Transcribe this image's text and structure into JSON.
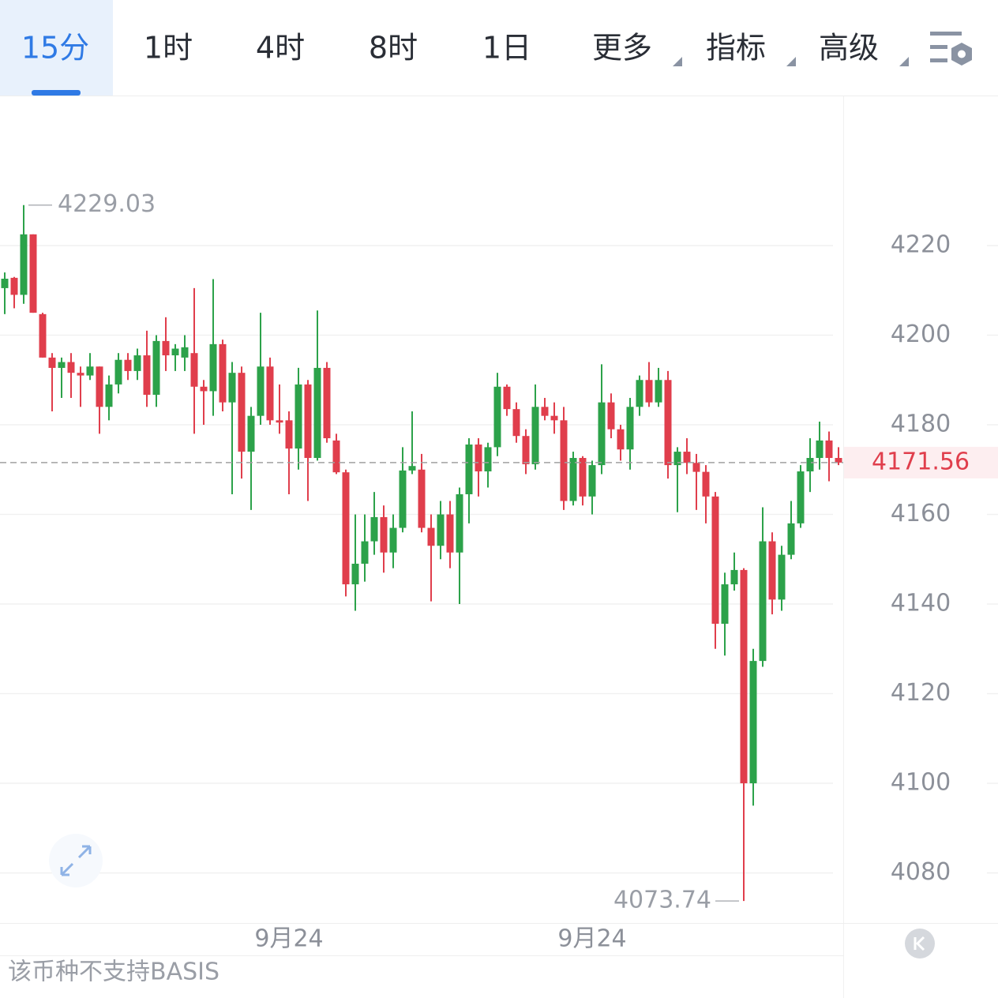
{
  "toolbar": {
    "tabs": [
      "15分",
      "1时",
      "4时",
      "8时",
      "1日",
      "更多",
      "指标",
      "高级"
    ]
  },
  "footer": "该币种不支持BASIS",
  "chart_data": {
    "type": "candlestick",
    "categories": [
      null,
      null,
      null,
      null,
      null,
      null,
      null,
      null,
      null,
      null,
      null,
      null,
      null,
      null,
      null,
      null,
      null,
      null,
      null,
      null,
      null,
      null,
      null,
      null,
      null,
      null,
      null,
      null,
      null,
      null,
      "9月24",
      null,
      null,
      null,
      null,
      null,
      null,
      null,
      null,
      null,
      null,
      null,
      null,
      null,
      null,
      null,
      null,
      null,
      null,
      null,
      null,
      null,
      null,
      null,
      null,
      null,
      null,
      null,
      null,
      null,
      null,
      null,
      "9月24",
      null,
      null,
      null,
      null,
      null,
      null,
      null,
      null,
      null,
      null,
      null,
      null,
      null,
      null,
      null,
      null,
      null,
      null,
      null,
      null,
      null,
      null,
      null,
      null,
      null,
      null
    ],
    "open": [
      4210.5,
      4212.8,
      4209,
      4222.5,
      4204.7,
      4195,
      4192.7,
      4194,
      4191.6,
      4191,
      4193,
      4184,
      4189,
      4194.5,
      4192,
      4195.5,
      4186.7,
      4198.7,
      4195.5,
      4195,
      4196,
      4188.5,
      4187.5,
      4198,
      4185,
      4191.6,
      4174,
      4182,
      4193,
      4181,
      4181,
      4174.7,
      4189,
      4172.6,
      4192.7,
      4176.5,
      4169.4,
      4144.4,
      4149,
      4154,
      4159.4,
      4151.5,
      4157,
      4169.8,
      4170,
      4157,
      4153,
      4160,
      4151.5,
      4164.5,
      4175.6,
      4169.6,
      4175,
      4188.5,
      4183.5,
      4177.5,
      4171.2,
      4184,
      4182,
      4181,
      4163,
      4172.6,
      4164,
      4171,
      4185,
      4179,
      4174.5,
      4184,
      4190,
      4185,
      4190,
      4171,
      4174,
      4171.5,
      4169.5,
      4164,
      4135.6,
      4144.4,
      4147.6,
      4100,
      4127.3,
      4154,
      4141,
      4151,
      4158,
      4169.6,
      4172.6,
      4176.5,
      4172.6
    ],
    "high": [
      4214,
      4213,
      4229.03,
      4222.5,
      4205,
      4196,
      4195,
      4196,
      4193,
      4196,
      4193,
      4191,
      4196,
      4196,
      4197,
      4201,
      4200,
      4204,
      4198,
      4200,
      4210.5,
      4190,
      4212.5,
      4199,
      4194,
      4193,
      4184,
      4205,
      4195,
      4189,
      4183,
      4192.7,
      4190,
      4205.5,
      4194,
      4178,
      4170,
      4160,
      4160,
      4165,
      4162,
      4160,
      4175,
      4183,
      4173.5,
      4160,
      4163,
      4163,
      4166,
      4177,
      4177,
      4176,
      4191.6,
      4189,
      4185,
      4179,
      4189,
      4186,
      4185,
      4184,
      4174,
      4173,
      4172,
      4193.5,
      4187,
      4180,
      4186,
      4191,
      4194,
      4192.7,
      4192,
      4175,
      4177,
      4173.5,
      4171,
      4165,
      4147,
      4151.5,
      4148,
      4130,
      4161.6,
      4156,
      4153,
      4163,
      4171,
      4177,
      4180.7,
      4178.5,
      4175
    ],
    "low": [
      4204.7,
      4206,
      4207,
      4205,
      4195,
      4183,
      4186,
      4186,
      4184,
      4190,
      4178,
      4181,
      4187,
      4190,
      4190,
      4184,
      4184,
      4192,
      4192,
      4192,
      4178,
      4180,
      4182,
      4183,
      4164.5,
      4168,
      4161,
      4180,
      4180,
      4178,
      4164.5,
      4170,
      4163,
      4172,
      4176,
      4169,
      4141.7,
      4138.5,
      4145,
      4151,
      4147,
      4148,
      4156,
      4169,
      4156,
      4140.6,
      4150,
      4148,
      4140,
      4158,
      4164,
      4166,
      4173,
      4182,
      4176,
      4169,
      4170,
      4181,
      4178,
      4161,
      4162,
      4162,
      4160,
      4169,
      4177,
      4172,
      4170,
      4182,
      4184,
      4184,
      4168,
      4160.5,
      4169,
      4161,
      4158,
      4130,
      4128.5,
      4143,
      4073.74,
      4095,
      4126,
      4137.7,
      4138.5,
      4150,
      4157,
      4165,
      4170,
      4167.4,
      4171
    ],
    "close": [
      4212.6,
      4209,
      4222.5,
      4205,
      4195,
      4192.7,
      4194,
      4191.6,
      4191,
      4193,
      4184,
      4189,
      4194.5,
      4192,
      4195.5,
      4186.7,
      4198.7,
      4195.5,
      4197,
      4197.3,
      4188.5,
      4187.5,
      4198,
      4185,
      4191.6,
      4174,
      4182,
      4193,
      4181,
      4180.5,
      4174.7,
      4189,
      4172.6,
      4192.7,
      4177,
      4169.4,
      4144.4,
      4149,
      4154,
      4159.4,
      4151.5,
      4157,
      4169.8,
      4170.8,
      4157,
      4153,
      4160,
      4151.5,
      4164.5,
      4175.6,
      4169.6,
      4175,
      4188.5,
      4183.5,
      4177.5,
      4171.2,
      4184,
      4182,
      4181,
      4163,
      4172.6,
      4164,
      4171,
      4185,
      4179,
      4174.5,
      4184,
      4190,
      4185,
      4190,
      4171,
      4174,
      4171.5,
      4169.5,
      4164,
      4135.6,
      4144.4,
      4147.6,
      4100,
      4127.3,
      4154,
      4141,
      4151,
      4158,
      4169.6,
      4172.6,
      4176.5,
      4172.6,
      4171.56
    ],
    "up_color": "#2ca24a",
    "down_color": "#e03e4c",
    "ylim": [
      4069,
      4253.3
    ],
    "yticks": [
      4080,
      4100,
      4120,
      4140,
      4160,
      4180,
      4200,
      4220
    ],
    "grid": true
  }
}
